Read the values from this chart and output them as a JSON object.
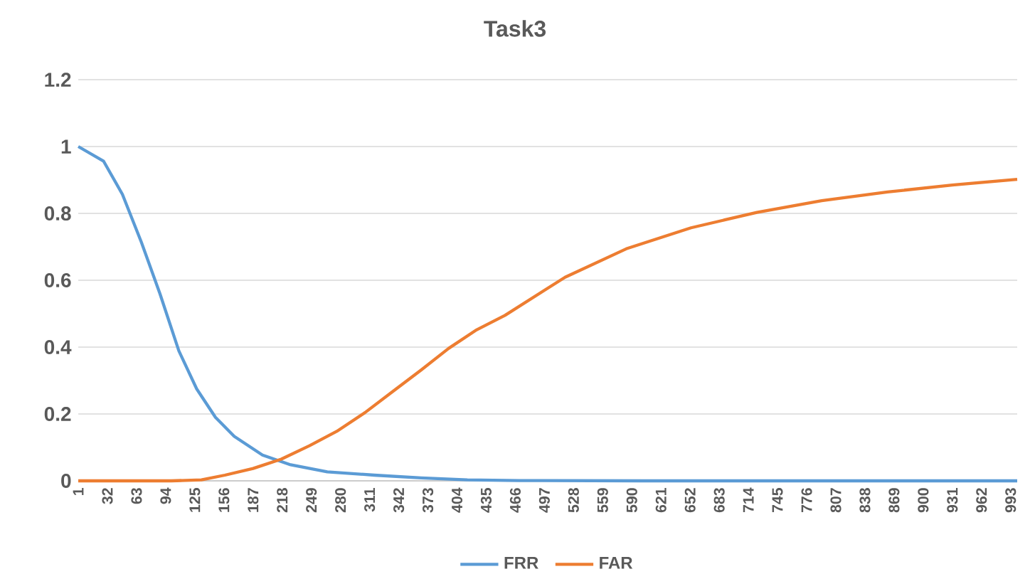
{
  "chart_data": {
    "type": "line",
    "title": "Task3",
    "xlim": [
      1,
      1000
    ],
    "xticks": [
      1,
      32,
      63,
      94,
      125,
      156,
      187,
      218,
      249,
      280,
      311,
      342,
      373,
      404,
      435,
      466,
      497,
      528,
      559,
      590,
      621,
      652,
      683,
      714,
      745,
      776,
      807,
      838,
      869,
      900,
      931,
      962,
      993
    ],
    "ylim": [
      0,
      1.2
    ],
    "yticks": [
      0,
      0.2,
      0.4,
      0.6,
      0.8,
      1,
      1.2
    ],
    "grid": "y",
    "legend": "bottom",
    "line_style": "solid",
    "series": [
      {
        "name": "FRR",
        "color": "#5b9bd5",
        "x": [
          1,
          28,
          48,
          68,
          88,
          108,
          127,
          147,
          167,
          197,
          227,
          266,
          316,
          366,
          415,
          470,
          600,
          800,
          1000
        ],
        "values": [
          1.0,
          0.956,
          0.857,
          0.715,
          0.559,
          0.389,
          0.275,
          0.19,
          0.133,
          0.077,
          0.048,
          0.027,
          0.017,
          0.009,
          0.003,
          0.001,
          0,
          0,
          0
        ]
      },
      {
        "name": "FAR",
        "color": "#ed7d31",
        "x": [
          1,
          100,
          132,
          157,
          187,
          217,
          247,
          276,
          306,
          336,
          366,
          395,
          425,
          455,
          519,
          584,
          653,
          723,
          792,
          862,
          931,
          1000
        ],
        "values": [
          0,
          0,
          0.003,
          0.017,
          0.037,
          0.065,
          0.105,
          0.148,
          0.204,
          0.268,
          0.332,
          0.396,
          0.452,
          0.495,
          0.609,
          0.694,
          0.757,
          0.803,
          0.838,
          0.864,
          0.885,
          0.902
        ]
      }
    ]
  }
}
